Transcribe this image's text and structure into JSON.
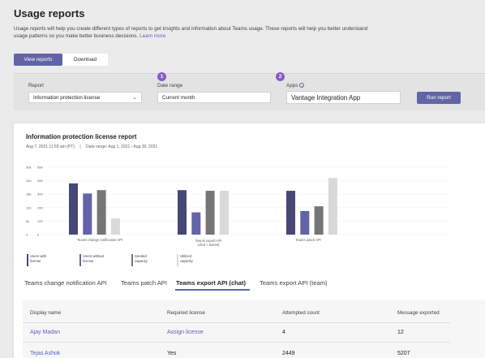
{
  "page": {
    "title": "Usage reports",
    "description": "Usage reports will help you create different types of reports to get insights and information about Teams usage. These reports will help you better understand usage patterns so you make better business decisions.",
    "learn_more": "Learn more"
  },
  "tabs": {
    "view": "View reports",
    "download": "Download"
  },
  "filters": {
    "report_label": "Report",
    "report_value": "Information protection license",
    "date_label": "Date range",
    "date_value": "Current month",
    "apps_label": "Apps",
    "apps_info_icon": "info-icon",
    "apps_value": "Vantage Integration App",
    "badge1": "1",
    "badge2": "2",
    "run_label": "Run report"
  },
  "report": {
    "title": "Information protection license report",
    "timestamp": "Aug 7, 2021 11:59 am (PT)",
    "separator": "|",
    "date_range": "Date range: Aug 1, 2021 - Aug 30, 2021"
  },
  "chart_data": {
    "type": "bar",
    "left_axis_ticks": [
      "30k",
      "24k",
      "18k",
      "12k",
      "6k",
      "0"
    ],
    "right_axis_ticks": [
      "500",
      "400",
      "300",
      "200",
      "100",
      "0"
    ],
    "categories": [
      "Teams change notification API",
      "Teams export API\n(chat + teams)",
      "Teams patch API"
    ],
    "series": [
      {
        "name": "Users with license",
        "color": "#464775",
        "values": [
          380,
          330,
          325
        ]
      },
      {
        "name": "Users without license",
        "color": "#6264a7",
        "values": [
          305,
          165,
          175
        ]
      },
      {
        "name": "Seeded capacity",
        "color": "#757575",
        "values": [
          330,
          325,
          210
        ]
      },
      {
        "name": "Utilized capacity",
        "color": "#d9d9d9",
        "values": [
          120,
          325,
          420
        ]
      }
    ],
    "ylim": [
      0,
      500
    ]
  },
  "result_tabs": [
    "Teams change notification API",
    "Teams patch API",
    "Teams export API (chat)",
    "Teams export API (team)"
  ],
  "table": {
    "columns": [
      "Display name",
      "Required license",
      "Attempted count",
      "Message exported"
    ],
    "rows": [
      [
        "Ajay Madan",
        "Assign license",
        "4",
        "12"
      ],
      [
        "Tejas Ashok",
        "Yes",
        "2449",
        "5207"
      ]
    ]
  }
}
